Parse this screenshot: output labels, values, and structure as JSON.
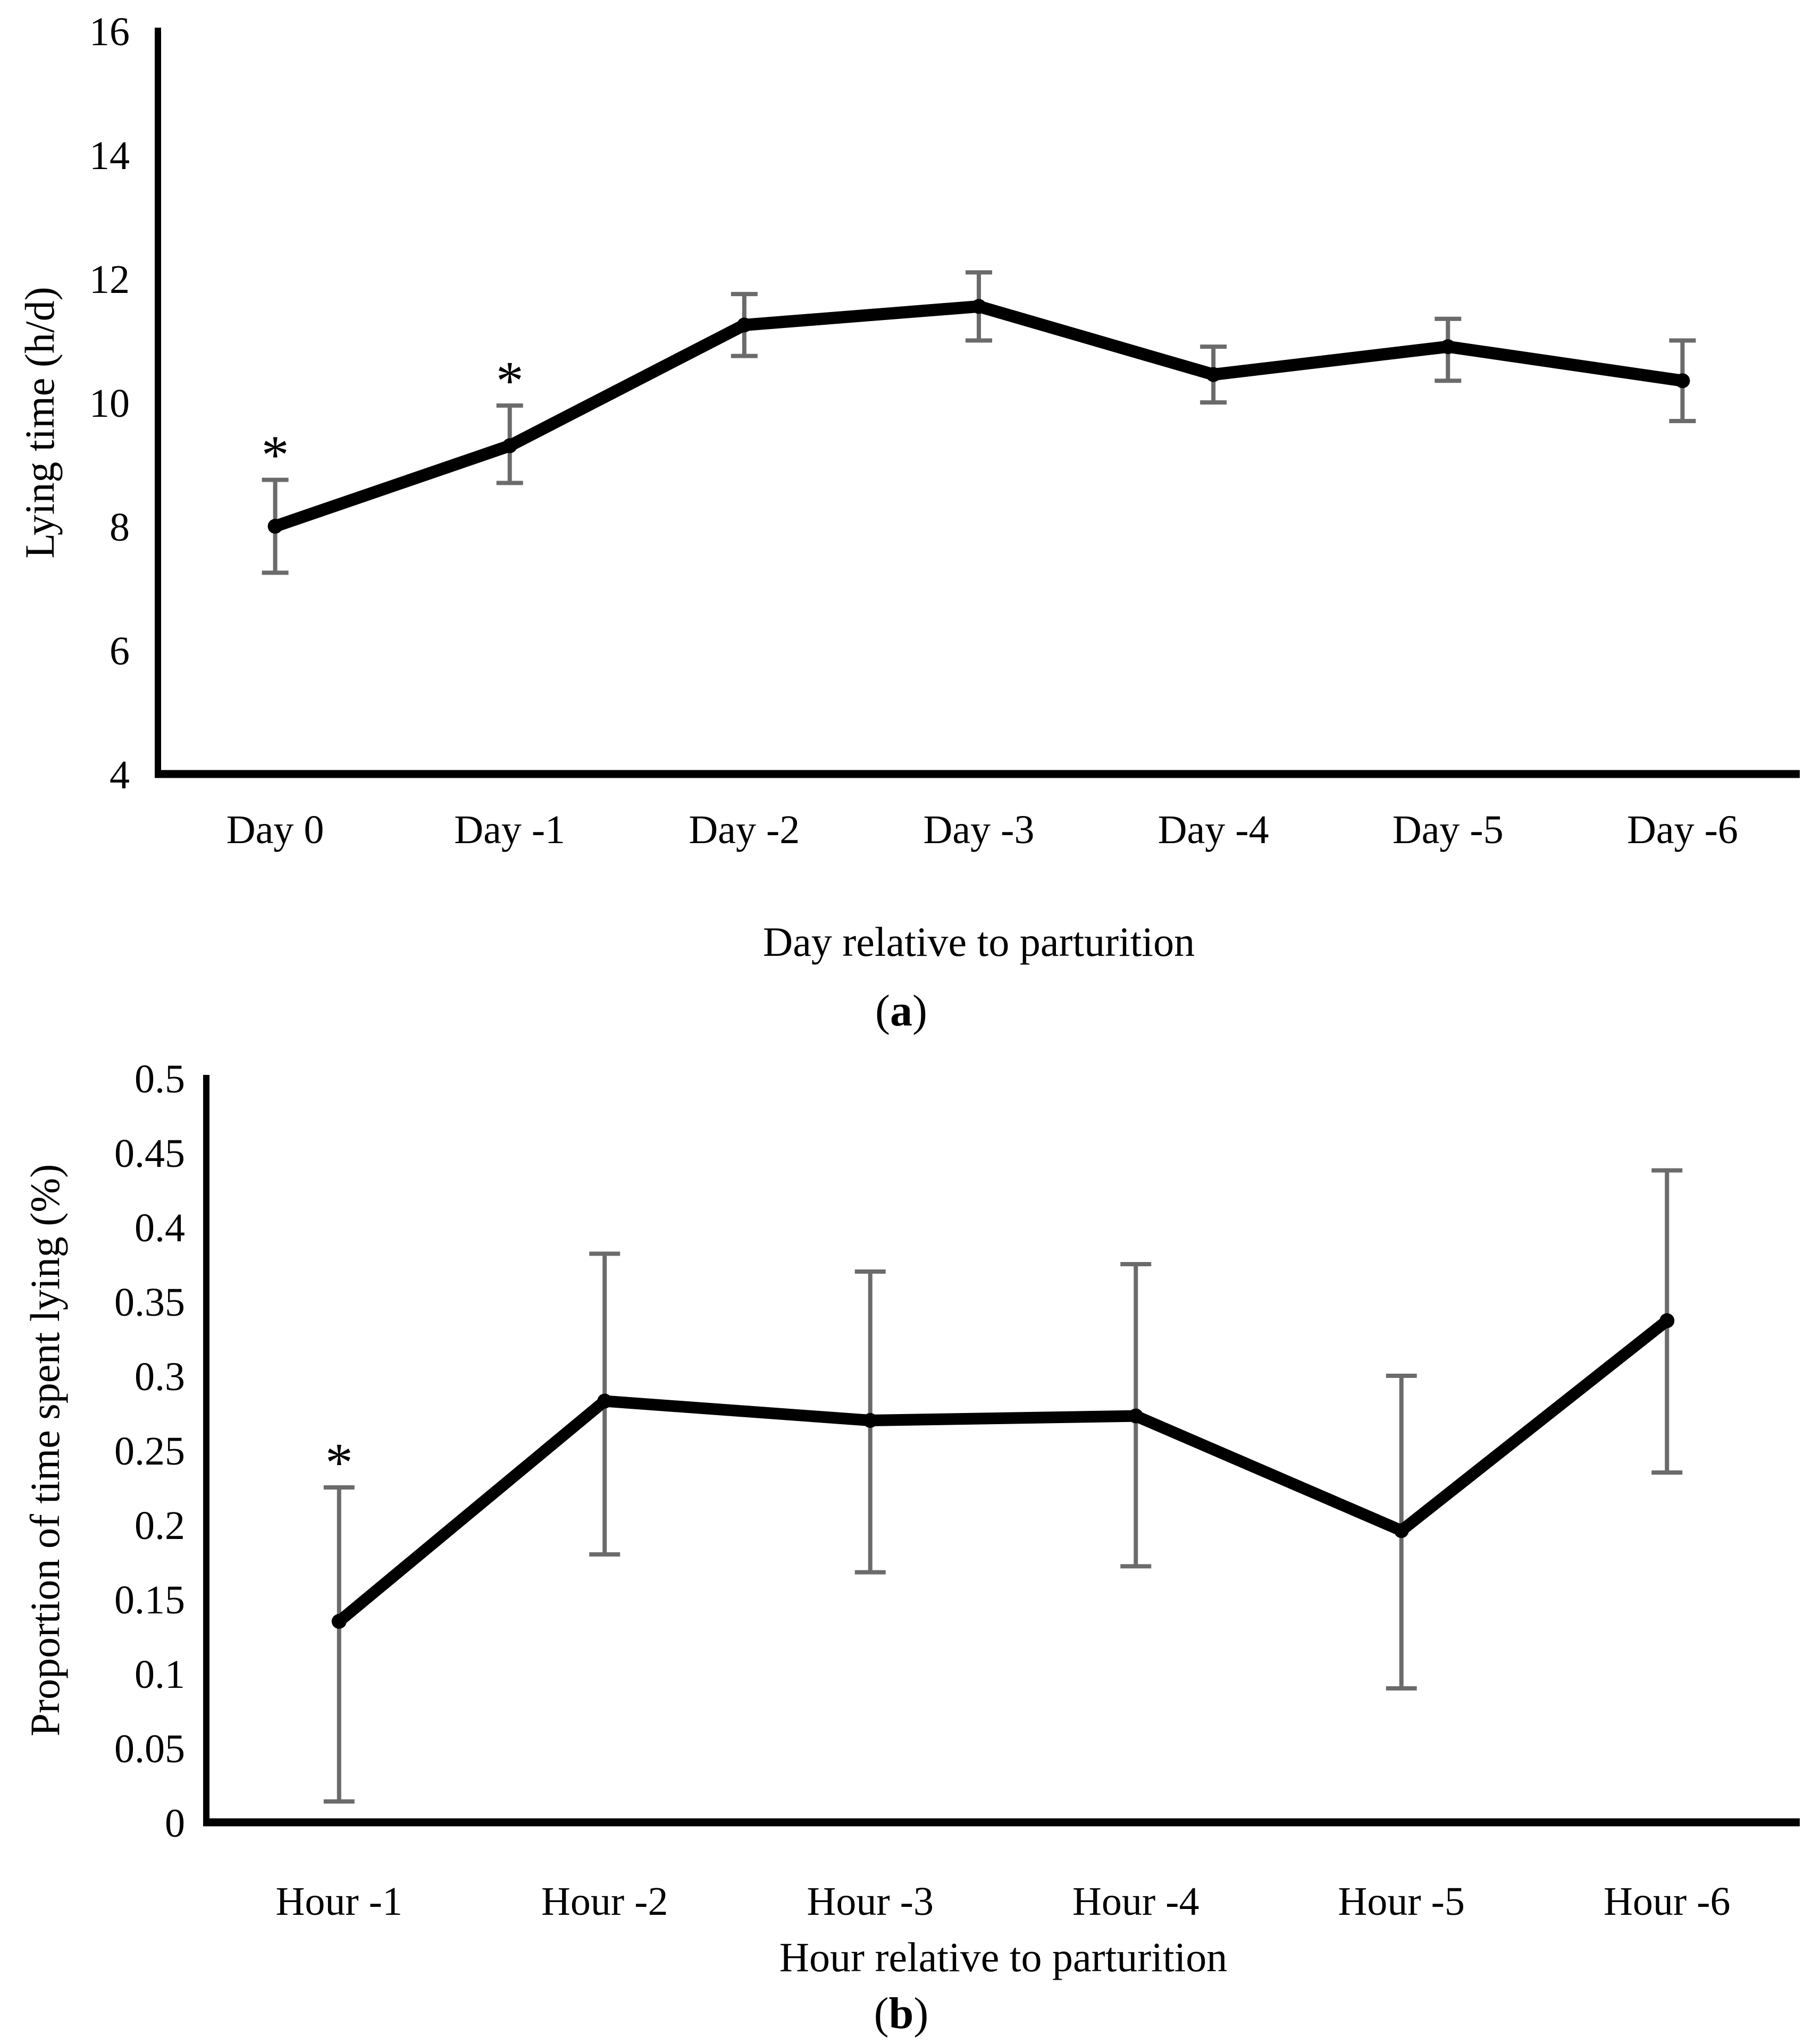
{
  "figure": {
    "background": "#ffffff",
    "series_color": "#000000",
    "error_bar_color": "#6b6b6b",
    "text_color": "#000000"
  },
  "chart_data": [
    {
      "id": "a",
      "type": "line",
      "title": "",
      "caption": {
        "prefix": "(",
        "letter": "a",
        "suffix": ")"
      },
      "xlabel": "Day relative to parturition",
      "ylabel": "Lying time (h/d)",
      "categories": [
        "Day 0",
        "Day -1",
        "Day -2",
        "Day -3",
        "Day -4",
        "Day -5",
        "Day -6"
      ],
      "series": [
        {
          "name": "Mean lying time",
          "values": [
            8.0,
            9.3,
            11.25,
            11.55,
            10.45,
            10.9,
            10.35
          ]
        }
      ],
      "error_lower": [
        7.25,
        8.7,
        10.75,
        11.0,
        10.0,
        10.35,
        9.7
      ],
      "error_upper": [
        8.75,
        9.95,
        11.75,
        12.1,
        10.9,
        11.35,
        11.0
      ],
      "significant": [
        true,
        true,
        false,
        false,
        false,
        false,
        false
      ],
      "sig_symbol": "*",
      "ylim": [
        4,
        16
      ],
      "yticks": [
        4,
        6,
        8,
        10,
        12,
        14,
        16
      ],
      "ytick_labels": [
        "4",
        "6",
        "8",
        "10",
        "12",
        "14",
        "16"
      ],
      "grid": false,
      "legend": "none",
      "error_bars": "vertical-with-caps"
    },
    {
      "id": "b",
      "type": "line",
      "title": "",
      "caption": {
        "prefix": "(",
        "letter": "b",
        "suffix": ")"
      },
      "xlabel": "Hour relative to parturition",
      "ylabel": "Proportion of time spent lying (%)",
      "categories": [
        "Hour -1",
        "Hour -2",
        "Hour -3",
        "Hour -4",
        "Hour -5",
        "Hour -6"
      ],
      "series": [
        {
          "name": "Mean proportion of time spent lying",
          "values": [
            0.135,
            0.283,
            0.27,
            0.273,
            0.196,
            0.337
          ]
        }
      ],
      "error_lower": [
        0.014,
        0.18,
        0.168,
        0.172,
        0.09,
        0.235
      ],
      "error_upper": [
        0.225,
        0.382,
        0.37,
        0.375,
        0.3,
        0.438
      ],
      "significant": [
        true,
        false,
        false,
        false,
        false,
        false
      ],
      "sig_symbol": "*",
      "ylim": [
        0,
        0.5
      ],
      "yticks": [
        0,
        0.05,
        0.1,
        0.15,
        0.2,
        0.25,
        0.3,
        0.35,
        0.4,
        0.45,
        0.5
      ],
      "ytick_labels": [
        "0",
        "0.05",
        "0.1",
        "0.15",
        "0.2",
        "0.25",
        "0.3",
        "0.35",
        "0.4",
        "0.45",
        "0.5"
      ],
      "grid": false,
      "legend": "none",
      "error_bars": "vertical-with-caps"
    }
  ]
}
